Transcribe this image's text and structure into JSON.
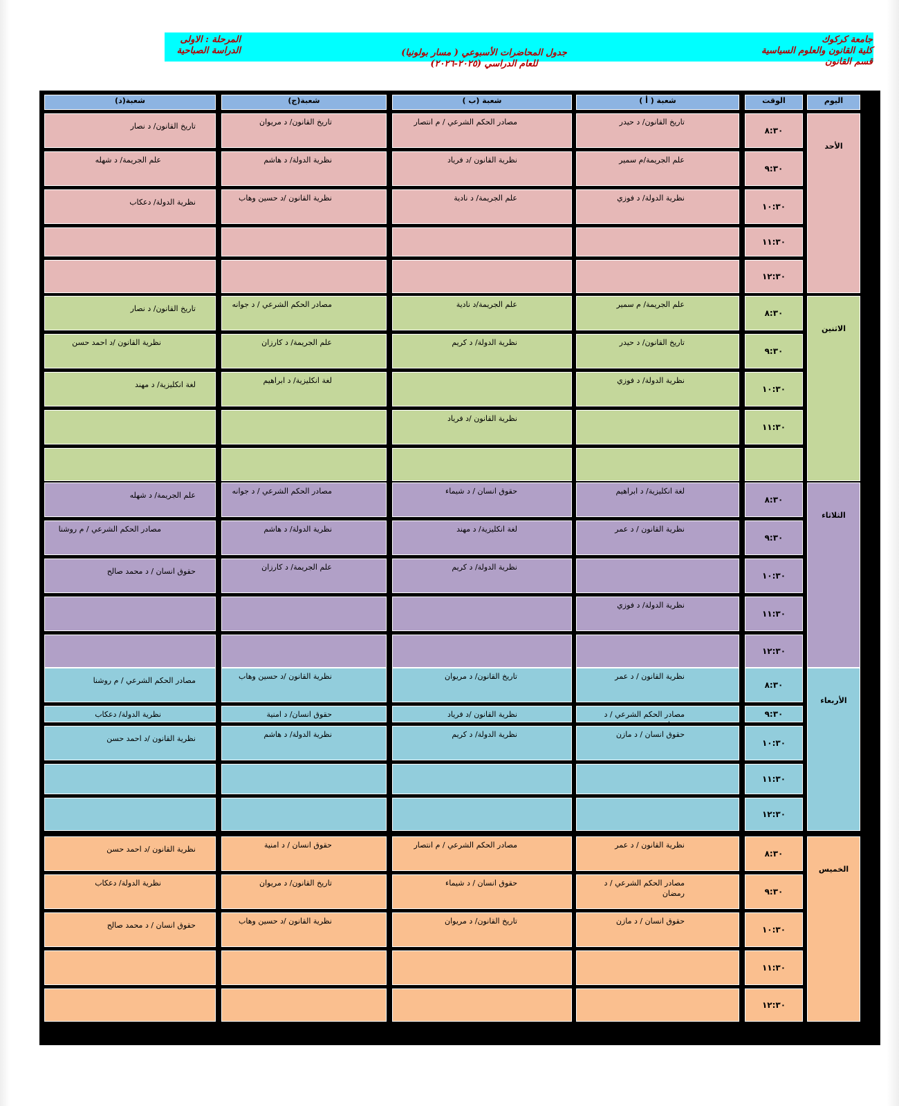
{
  "header": {
    "university": "جامعة كركوك",
    "college": "كلية القانون والعلوم السياسية",
    "department": "قسم القانون",
    "title": "جدول المحاضرات الأسبوعي  ( مسار بولونيا)",
    "academic_year": "للعام   الدراسي (٢٠٢٥-٢٠٢٦)",
    "stage": "المرحلة : الاولى",
    "study_type": "الدراسة الصباحية"
  },
  "columns": {
    "day": "اليوم",
    "time": "الوقت",
    "section_a": "شعبة ( أ )",
    "section_b": "شعبة (ب )",
    "section_c": "شعبة(ج)",
    "section_d": "شعبة(د)"
  },
  "days": [
    {
      "name": "الأحد",
      "color": "#e6b8b7",
      "rows": [
        {
          "time": "٨:٣٠",
          "a": "تاريخ القانون/ د حيدر",
          "b": "مصادر الحكم الشرعي  / م انتصار",
          "c": "تاريخ القانون/ د مريوان",
          "d": "تاريخ القانون/ د نصار"
        },
        {
          "time": "٩:٣٠",
          "a": "علم الجريمة/م سمير",
          "b": "نظرية القانون  /د فرياد",
          "c": "نظرية الدولة/ د هاشم",
          "d": "علم الجريمة/ د شهله"
        },
        {
          "time": "١٠:٣٠",
          "a": "نظرية الدولة/ د فوزي",
          "b": "علم الجريمة/ د نادية",
          "c": "نظرية القانون  /د حسين وهاب",
          "d": "نظرية الدولة/ دعكاب"
        },
        {
          "time": "١١:٣٠",
          "a": "",
          "b": "",
          "c": "",
          "d": ""
        },
        {
          "time": "١٢:٣٠",
          "a": "",
          "b": "",
          "c": "",
          "d": ""
        }
      ]
    },
    {
      "name": "الاثنين",
      "color": "#c4d79b",
      "rows": [
        {
          "time": "٨:٣٠",
          "a": "علم الجريمة/ م سمير",
          "b": "علم الجريمة/د نادية",
          "c": "مصادر الحكم الشرعي  / د جوانه",
          "d": "تاريخ القانون/ د نصار"
        },
        {
          "time": "٩:٣٠",
          "a": "تاريخ القانون/ د حيدر",
          "b": "نظرية الدولة/ د كريم",
          "c": "علم الجريمة/ د كارزان",
          "d": "نظرية القانون  /د احمد حسن"
        },
        {
          "time": "١٠:٣٠",
          "a": "نظرية الدولة/ د فوزي",
          "b": "",
          "c": "لغة انكليزية/ د ابراهيم",
          "d": "لغة انكليزية/ د مهند"
        },
        {
          "time": "١١:٣٠",
          "a": "",
          "b": "نظرية القانون  /د فرياد",
          "c": "",
          "d": ""
        },
        {
          "time": "",
          "a": "",
          "b": "",
          "c": "",
          "d": ""
        }
      ]
    },
    {
      "name": "الثلاثاء",
      "color": "#b1a0c7",
      "rows": [
        {
          "time": "٨:٣٠",
          "a": "لغة انكليزية/ د ابراهيم",
          "b": "حقوق انسان / د شيماء",
          "c": "مصادر الحكم الشرعي  / د جوانه",
          "d": "علم الجريمة/ د شهله"
        },
        {
          "time": "٩:٣٠",
          "a": "نظرية القانون  / د عمر",
          "b": "لغة انكليزية/ د مهند",
          "c": "نظرية الدولة/ د هاشم",
          "d": "مصادر الحكم الشرعي  / م روشنا"
        },
        {
          "time": "١٠:٣٠",
          "a": "",
          "b": "نظرية الدولة/ د كريم",
          "c": "علم الجريمة/ د كارزان",
          "d": "حقوق انسان /  د محمد صالح"
        },
        {
          "time": "١١:٣٠",
          "a": "نظرية الدولة/ د فوزي",
          "b": "",
          "c": "",
          "d": ""
        },
        {
          "time": "١٢:٣٠",
          "a": "",
          "b": "",
          "c": "",
          "d": ""
        }
      ]
    },
    {
      "name": "الأربعاء",
      "color": "#92cddc",
      "rows": [
        {
          "time": "٨:٣٠",
          "a": "نظرية القانون  / د عمر",
          "b": "تاريخ القانون/  د مريوان",
          "c": "نظرية القانون  /د حسين وهاب",
          "d": "مصادر الحكم الشرعي  / م روشنا"
        },
        {
          "time": "٩:٣٠",
          "a": "مصادر الحكم الشرعي  / د رمضان",
          "b": "نظرية القانون  /د فرياد",
          "c": "حقوق انسان/ د امنية",
          "d": "نظرية الدولة/ دعكاب"
        },
        {
          "time": "١٠:٣٠",
          "a": "حقوق انسان / د مازن",
          "b": "نظرية الدولة/ د كريم",
          "c": "نظرية الدولة/ د هاشم",
          "d": "نظرية القانون  /د احمد حسن"
        },
        {
          "time": "١١:٣٠",
          "a": "",
          "b": "",
          "c": "",
          "d": ""
        },
        {
          "time": "١٢:٣٠",
          "a": "",
          "b": "",
          "c": "",
          "d": ""
        }
      ]
    },
    {
      "name": "الخميس",
      "color": "#fabf8f",
      "rows": [
        {
          "time": "٨:٣٠",
          "a": "نظرية القانون  / د عمر",
          "b": "مصادر الحكم الشرعي  / م انتصار",
          "c": "حقوق انسان / د امنية",
          "d": "نظرية القانون  /د احمد حسن"
        },
        {
          "time": "٩:٣٠",
          "a": "مصادر الحكم الشرعي  / د رمضان",
          "b": "حقوق انسان /  د شيماء",
          "c": "تاريخ القانون/ د مريوان",
          "d": "نظرية الدولة/ دعكاب"
        },
        {
          "time": "١٠:٣٠",
          "a": "حقوق انسان / د مازن",
          "b": "تاريخ القانون/  د مريوان",
          "c": "نظرية القانون  /د حسين وهاب",
          "d": "حقوق انسان /  د محمد صالح"
        },
        {
          "time": "١١:٣٠",
          "a": "",
          "b": "",
          "c": "",
          "d": ""
        },
        {
          "time": "١٢:٣٠",
          "a": "",
          "b": "",
          "c": "",
          "d": ""
        }
      ]
    }
  ]
}
